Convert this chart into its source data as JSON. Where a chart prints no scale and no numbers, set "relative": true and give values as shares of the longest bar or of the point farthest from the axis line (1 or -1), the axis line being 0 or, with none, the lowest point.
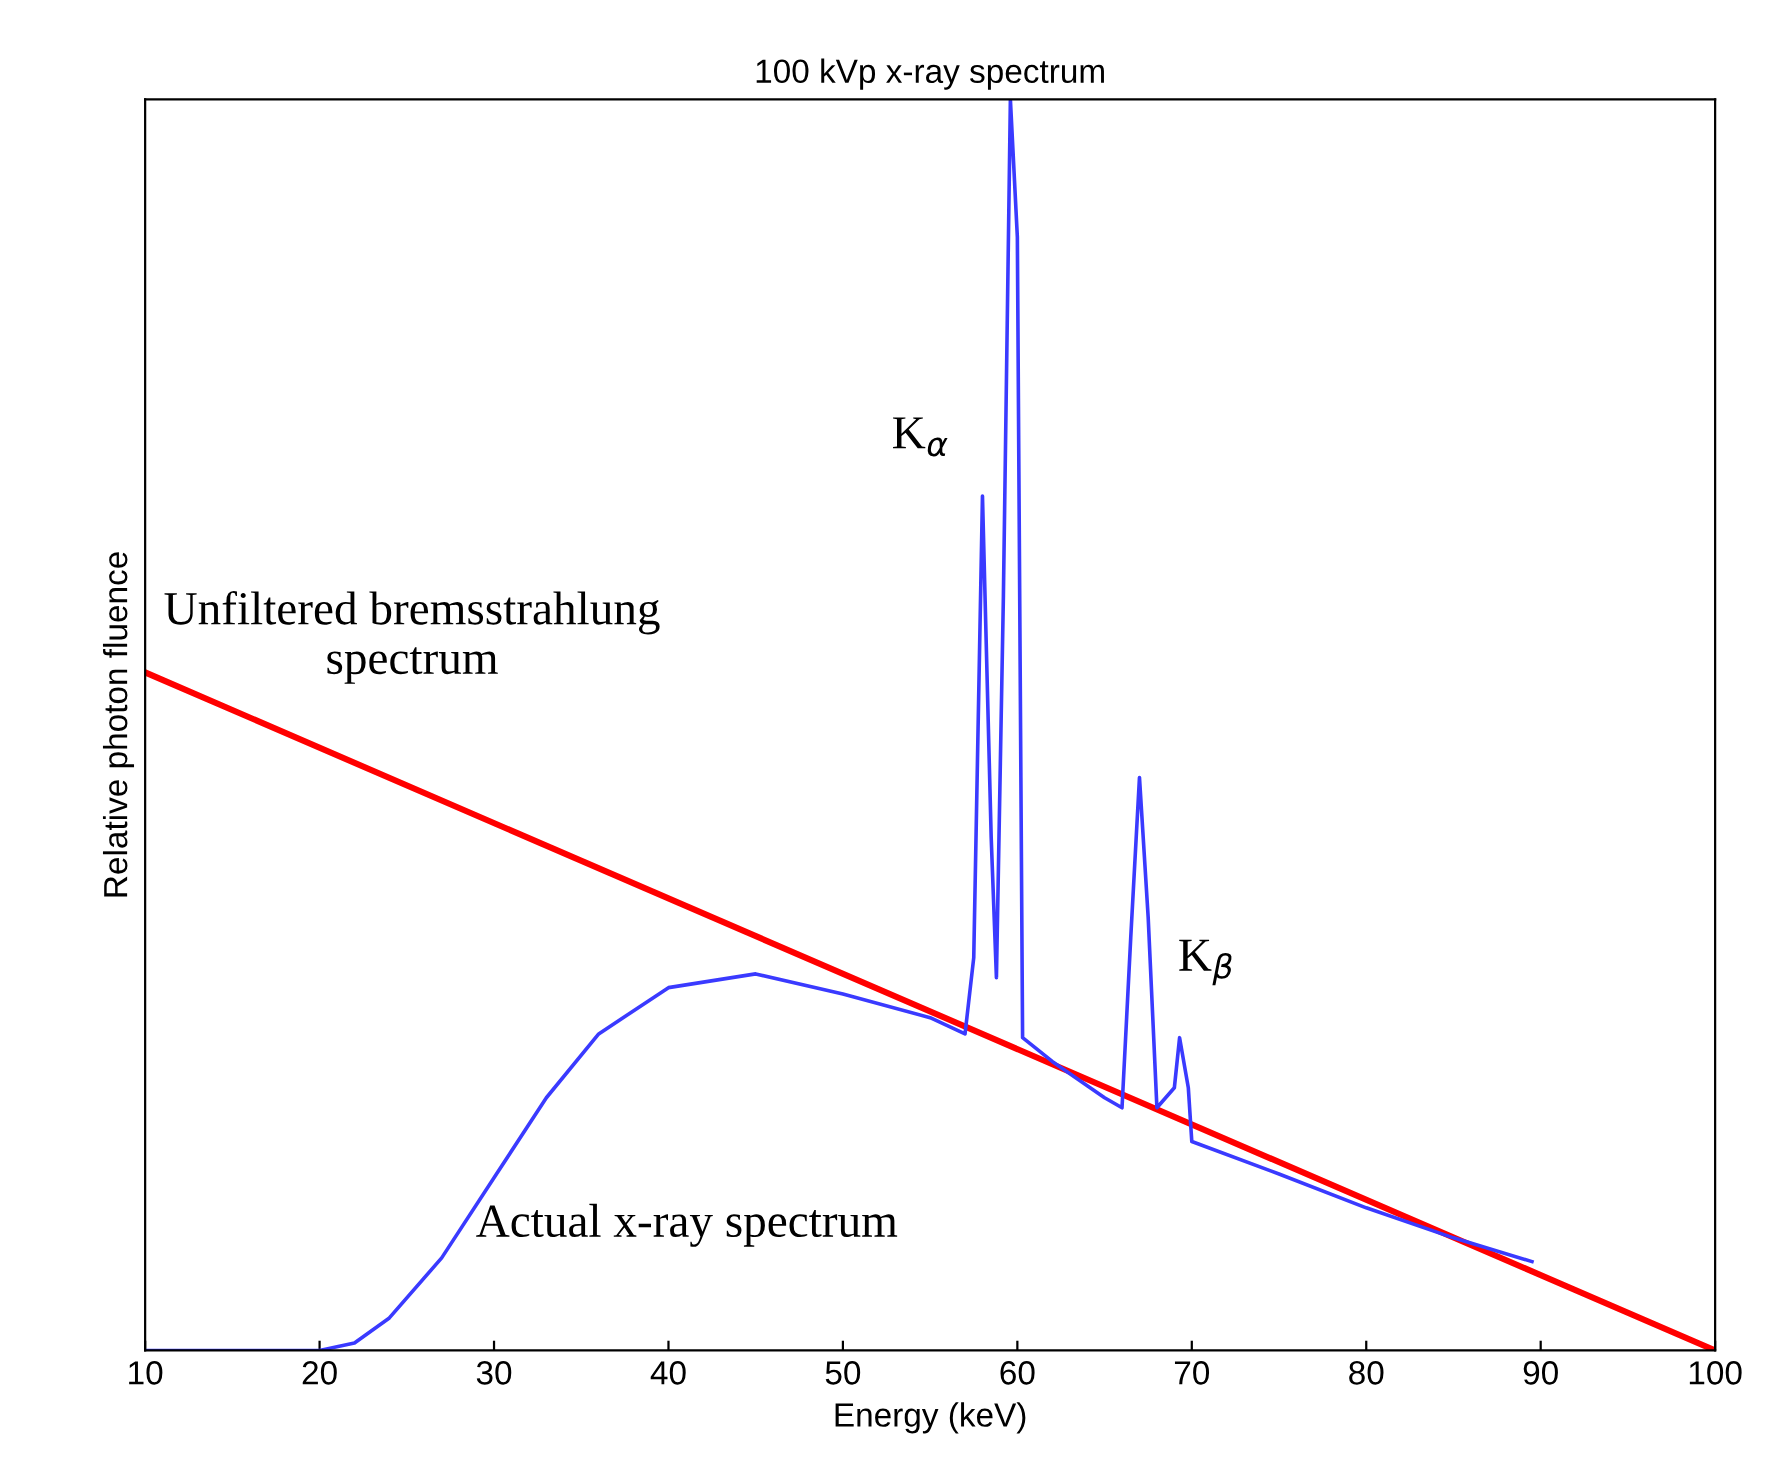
{
  "chart_data": {
    "type": "line",
    "title": "100 kVp x-ray spectrum",
    "xlabel": "Energy (keV)",
    "ylabel": "Relative photon fluence",
    "relative": true,
    "xlim": [
      10,
      100
    ],
    "xticks": [
      10,
      20,
      30,
      40,
      50,
      60,
      70,
      80,
      90,
      100
    ],
    "grid": false,
    "legend": false,
    "series": [
      {
        "color": "#ff0000",
        "x": [
          10,
          100
        ],
        "values": [
          0.542,
          0
        ]
      },
      {
        "color": "#3a3aff",
        "x": [
          10,
          20,
          22,
          24,
          27,
          30,
          33,
          36,
          40,
          45,
          50,
          55,
          57,
          57.5,
          58,
          58.5,
          58.8,
          59.2,
          59.6,
          60,
          60.3,
          62,
          65,
          66,
          66.5,
          67,
          67.5,
          68,
          69,
          69.3,
          69.8,
          70,
          75,
          80,
          85,
          89.5
        ],
        "values": [
          0,
          0,
          0.006,
          0.026,
          0.074,
          0.138,
          0.202,
          0.253,
          0.29,
          0.301,
          0.285,
          0.266,
          0.253,
          0.314,
          0.683,
          0.41,
          0.298,
          0.603,
          1.0,
          0.89,
          0.25,
          0.231,
          0.202,
          0.194,
          0.33,
          0.458,
          0.346,
          0.194,
          0.21,
          0.25,
          0.21,
          0.167,
          0.141,
          0.114,
          0.09,
          0.071
        ]
      }
    ],
    "annotations": [
      "Unfiltered bremsstrahlung\nspectrum",
      "Actual x-ray spectrum",
      "K$_{α}$",
      "K$_{β}$"
    ]
  }
}
